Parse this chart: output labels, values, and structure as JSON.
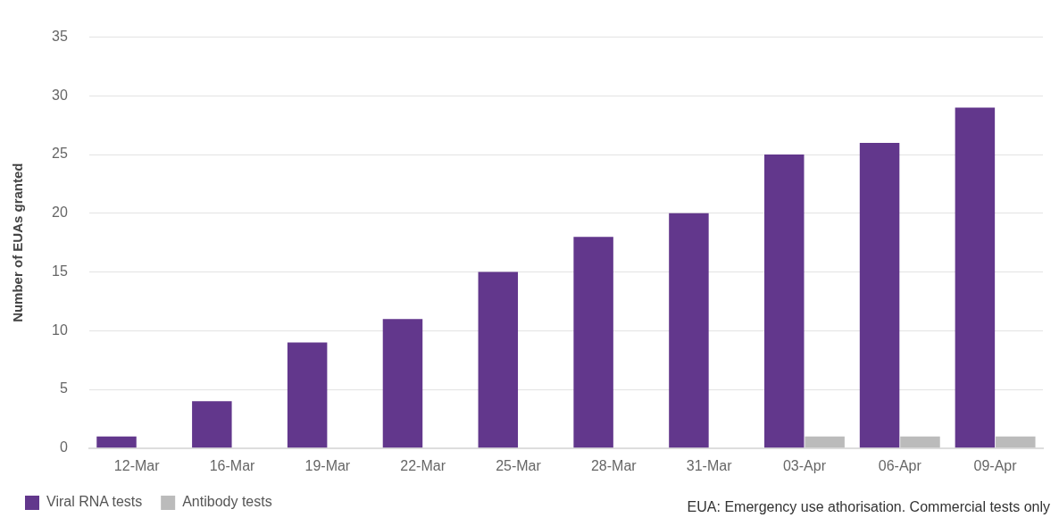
{
  "chart_data": {
    "type": "bar",
    "ylabel": "Number of EUAs granted",
    "categories": [
      "12-Mar",
      "16-Mar",
      "19-Mar",
      "22-Mar",
      "25-Mar",
      "28-Mar",
      "31-Mar",
      "03-Apr",
      "06-Apr",
      "09-Apr"
    ],
    "series": [
      {
        "name": "Viral RNA tests",
        "color": "#62378c",
        "values": [
          1,
          4,
          9,
          11,
          15,
          18,
          20,
          25,
          26,
          29
        ]
      },
      {
        "name": "Antibody tests",
        "color": "#bbbbbb",
        "values": [
          0,
          0,
          0,
          0,
          0,
          0,
          0,
          1,
          1,
          1
        ]
      }
    ],
    "ylim": [
      0,
      35
    ],
    "yticks": [
      0,
      5,
      10,
      15,
      20,
      25,
      30,
      35
    ],
    "grid": "y",
    "legend": "bottom left",
    "annotations": [
      "EUA: Emergency use athorisation. Commercial tests only"
    ]
  }
}
